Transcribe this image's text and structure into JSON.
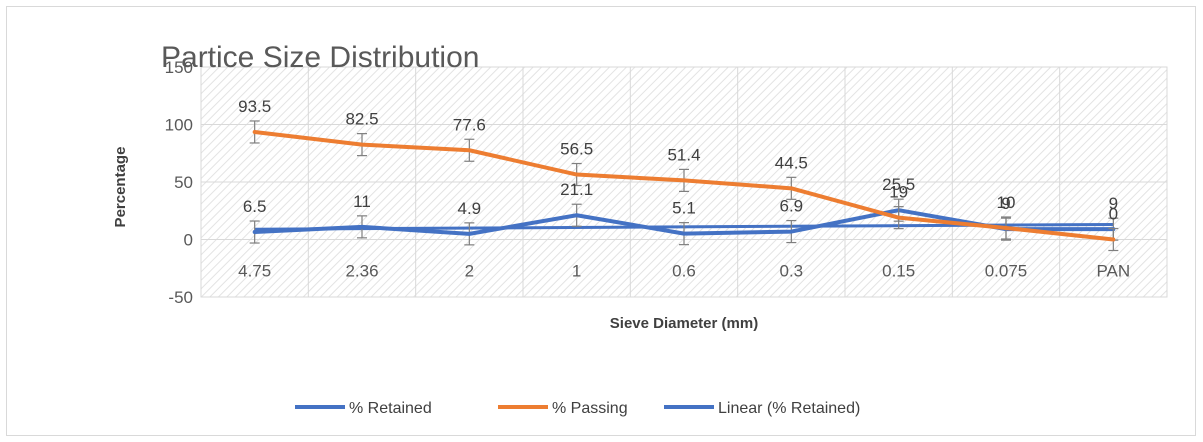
{
  "chart_data": {
    "type": "line",
    "title": "Partice Size Distribution",
    "xlabel": "Sieve Diameter (mm)",
    "ylabel": "Percentage",
    "categories": [
      "4.75",
      "2.36",
      "2",
      "1",
      "0.6",
      "0.3",
      "0.15",
      "0.075",
      "PAN"
    ],
    "ylim": [
      -50,
      150
    ],
    "yticks": [
      -50,
      0,
      50,
      100,
      150
    ],
    "grid": true,
    "legend_position": "bottom",
    "series": [
      {
        "name": "% Retained",
        "color": "#4472c4",
        "values": [
          6.5,
          11,
          4.9,
          21.1,
          5.1,
          6.9,
          25.5,
          9,
          9
        ],
        "labels": [
          "6.5",
          "11",
          "4.9",
          "21.1",
          "5.1",
          "6.9",
          "25.5",
          "9",
          "9"
        ],
        "error_bars": true
      },
      {
        "name": "% Passing",
        "color": "#ed7d31",
        "values": [
          93.5,
          82.5,
          77.6,
          56.5,
          51.4,
          44.5,
          19,
          10,
          0
        ],
        "labels": [
          "93.5",
          "82.5",
          "77.6",
          "56.5",
          "51.4",
          "44.5",
          "19",
          "10",
          "0"
        ],
        "error_bars": true
      }
    ],
    "trendline": {
      "name": "Linear (% Retained)",
      "of_series": "% Retained",
      "type": "linear",
      "color": "#4472c4"
    }
  }
}
